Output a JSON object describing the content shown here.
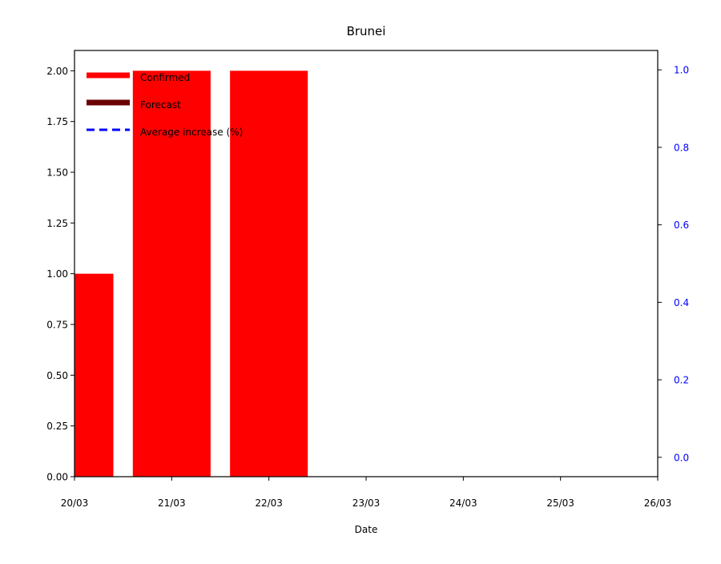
{
  "chart_data": {
    "type": "bar",
    "title": "Brunei",
    "xlabel": "Date",
    "ylabel": "",
    "x_ticks": [
      "20/03",
      "21/03",
      "22/03",
      "23/03",
      "24/03",
      "25/03",
      "26/03"
    ],
    "x_range": [
      "20/03",
      "26/03"
    ],
    "ylim": [
      0,
      2.1
    ],
    "y_ticks": [
      "0.00",
      "0.25",
      "0.50",
      "0.75",
      "1.00",
      "1.25",
      "1.50",
      "1.75",
      "2.00"
    ],
    "y2lim": [
      -0.05,
      1.05
    ],
    "y2_ticks": [
      "0.0",
      "0.2",
      "0.4",
      "0.6",
      "0.8",
      "1.0"
    ],
    "y2_color": "#0000ff",
    "series": [
      {
        "name": "Confirmed",
        "kind": "bar",
        "color": "#ff0000",
        "x": [
          "20/03",
          "21/03",
          "22/03"
        ],
        "values": [
          1,
          2,
          2
        ]
      },
      {
        "name": "Forecast",
        "kind": "bar",
        "color": "#6b0000",
        "x": [],
        "values": []
      },
      {
        "name": "Average increase (%)",
        "kind": "line",
        "style": "dashed",
        "color": "#0000ff",
        "x": [],
        "values": []
      }
    ],
    "legend": "top-left",
    "grid": false
  }
}
